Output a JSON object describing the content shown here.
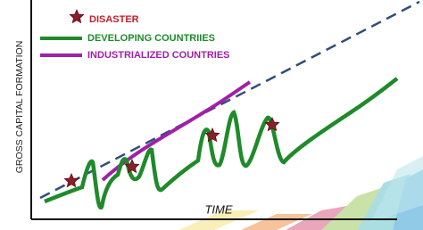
{
  "legend": {
    "disaster": "DISASTER",
    "developing": "DEVELOPING COUNTRIIES",
    "industrialized": "INDUSTRIALIZED COUNTRIES"
  },
  "axes": {
    "y_label": "GROSS CAPITAL FORMATION",
    "x_label": "TIME"
  }
}
